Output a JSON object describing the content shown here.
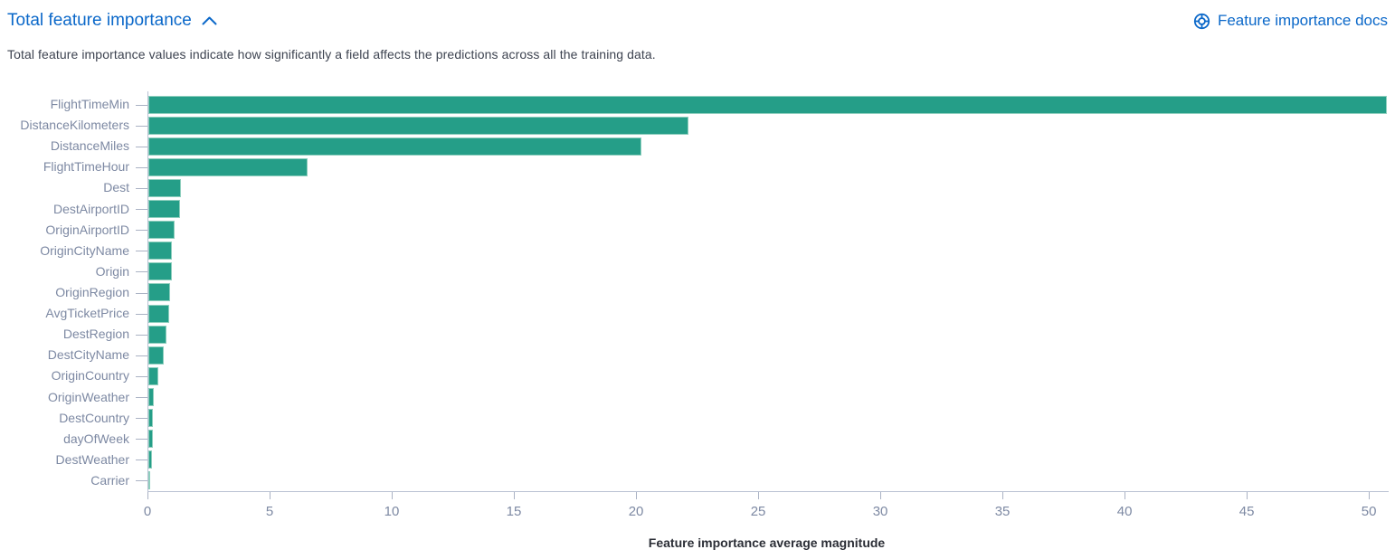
{
  "header": {
    "title": "Total feature importance",
    "collapse_icon": "chevron-up-icon",
    "docs_link_label": "Feature importance docs",
    "docs_link_icon": "help-lifebuoy-icon",
    "link_color": "#0b68c9"
  },
  "description": "Total feature importance values indicate how significantly a field affects the predictions across all the training data.",
  "chart_data": {
    "type": "bar",
    "orientation": "horizontal",
    "title": "",
    "xlabel": "Feature importance average magnitude",
    "ylabel": "",
    "categories": [
      "FlightTimeMin",
      "DistanceKilometers",
      "DistanceMiles",
      "FlightTimeHour",
      "Dest",
      "DestAirportID",
      "OriginAirportID",
      "OriginCityName",
      "Origin",
      "OriginRegion",
      "AvgTicketPrice",
      "DestRegion",
      "DestCityName",
      "OriginCountry",
      "OriginWeather",
      "DestCountry",
      "dayOfWeek",
      "DestWeather",
      "Carrier"
    ],
    "values": [
      50.7,
      22.1,
      20.2,
      6.5,
      1.35,
      1.3,
      1.07,
      0.96,
      0.95,
      0.89,
      0.85,
      0.74,
      0.62,
      0.42,
      0.22,
      0.19,
      0.19,
      0.15,
      0.07
    ],
    "x_ticks": [
      0,
      5,
      10,
      15,
      20,
      25,
      30,
      35,
      40,
      45,
      50
    ],
    "xlim": [
      0,
      50.7
    ],
    "grid": false,
    "legend": false,
    "bar_color": "#259e88",
    "bar_border_color": "#8fcfbe",
    "axis_line_color": "#b9c1d3",
    "axis_text_color": "#7d89a3",
    "xaxis_title_color": "#2b2e36"
  }
}
